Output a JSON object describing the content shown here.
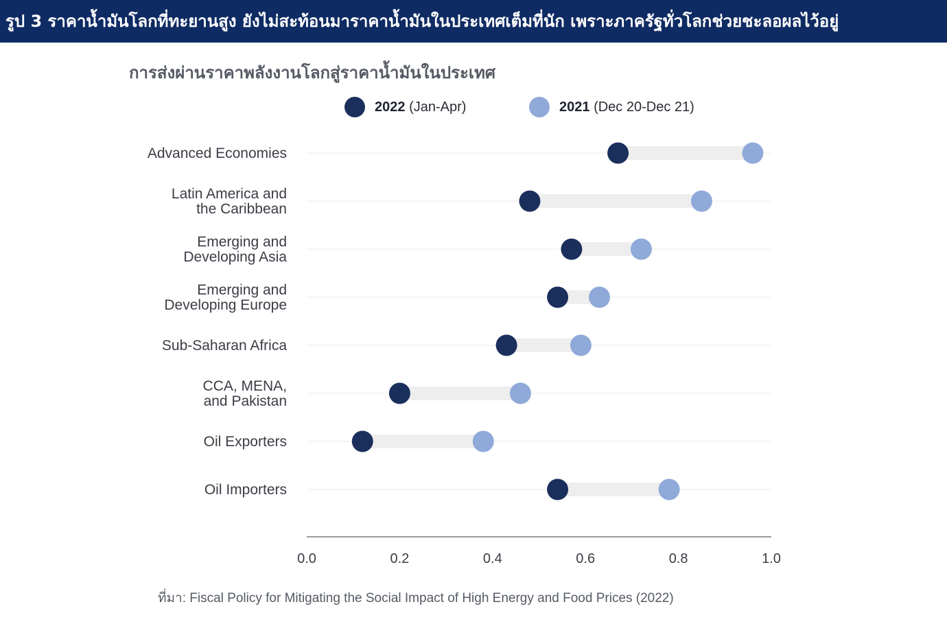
{
  "header": {
    "title": "รูป 3 ราคาน้ำมันโลกที่ทะยานสูง ยังไม่สะท้อนมาราคาน้ำมันในประเทศเต็มที่นัก เพราะภาครัฐทั่วโลกช่วยชะลอผลไว้อยู่"
  },
  "footer": {
    "source": "ที่มา: Fiscal Policy for Mitigating the Social Impact of High Energy and Food Prices (2022)"
  },
  "colors": {
    "banner": "#0f2b63",
    "series_2022": "#1b2f5c",
    "series_2021": "#8fa9d9",
    "connector": "#eeeeee",
    "axis": "#9a9a9a"
  },
  "chart_data": {
    "type": "dumbbell",
    "title": "การส่งผ่านราคาพลังงานโลกสู่ราคาน้ำมันในประเทศ",
    "xlabel": "",
    "ylabel": "",
    "xlim": [
      0.0,
      1.0
    ],
    "x_ticks": [
      "0.0",
      "0.2",
      "0.4",
      "0.6",
      "0.8",
      "1.0"
    ],
    "legend_position": "top",
    "grid": false,
    "series": [
      {
        "name": "2022",
        "period": "(Jan-Apr)",
        "color": "#1b2f5c"
      },
      {
        "name": "2021",
        "period": "(Dec 20-Dec 21)",
        "color": "#8fa9d9"
      }
    ],
    "categories": [
      {
        "label_lines": [
          "Advanced Economies"
        ],
        "v2022": 0.67,
        "v2021": 0.96
      },
      {
        "label_lines": [
          "Latin America and",
          "the Caribbean"
        ],
        "v2022": 0.48,
        "v2021": 0.85
      },
      {
        "label_lines": [
          "Emerging and",
          "Developing Asia"
        ],
        "v2022": 0.57,
        "v2021": 0.72
      },
      {
        "label_lines": [
          "Emerging and",
          "Developing Europe"
        ],
        "v2022": 0.54,
        "v2021": 0.63
      },
      {
        "label_lines": [
          "Sub-Saharan Africa"
        ],
        "v2022": 0.43,
        "v2021": 0.59
      },
      {
        "label_lines": [
          "CCA, MENA,",
          "and Pakistan"
        ],
        "v2022": 0.2,
        "v2021": 0.46
      },
      {
        "label_lines": [
          "Oil Exporters"
        ],
        "v2022": 0.12,
        "v2021": 0.38
      },
      {
        "label_lines": [
          "Oil Importers"
        ],
        "v2022": 0.54,
        "v2021": 0.78
      }
    ]
  }
}
